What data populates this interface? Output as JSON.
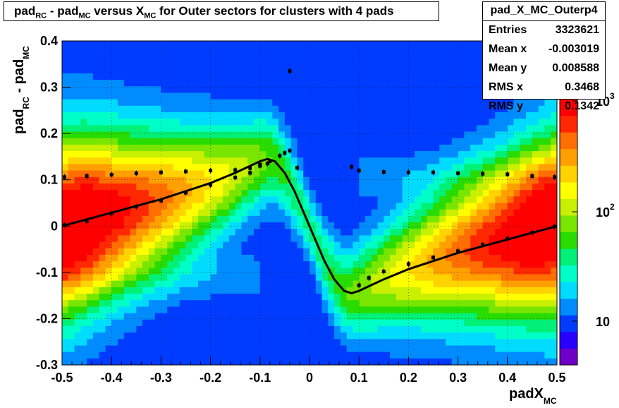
{
  "title": {
    "text_parts": [
      "pad",
      "RC",
      " - pad",
      "MC",
      " versus X",
      "MC",
      " for Outer sectors for clusters with 4 pads"
    ]
  },
  "stats": {
    "name": "pad_X_MC_Outerp4",
    "rows": [
      {
        "label": "Entries",
        "value": "3323621"
      },
      {
        "label": "Mean x",
        "value": "-0.003019"
      },
      {
        "label": "Mean y",
        "value": "0.008588"
      },
      {
        "label": "RMS x",
        "value": "0.3468"
      },
      {
        "label": "RMS y",
        "value": "0.1342"
      }
    ]
  },
  "chart_data": {
    "type": "heatmap",
    "xlabel": "padX",
    "xlabel_sub": "MC",
    "ylabel_parts": [
      "pad",
      "RC",
      " - pad",
      "MC"
    ],
    "xlim": [
      -0.5,
      0.5
    ],
    "ylim": [
      -0.3,
      0.4
    ],
    "x_ticks": [
      "-0.5",
      "-0.4",
      "-0.3",
      "-0.2",
      "-0.1",
      "0",
      "0.1",
      "0.2",
      "0.3",
      "0.4",
      "0.5"
    ],
    "y_ticks": [
      "-0.3",
      "-0.2",
      "-0.1",
      "0",
      "0.1",
      "0.2",
      "0.3",
      "0.4"
    ],
    "z_scale": "log",
    "z_ticks": [
      "10",
      "10^2",
      "10^3"
    ],
    "colors": {
      "max": "#ff1a00",
      "high": "#ff8c00",
      "mid": "#ffff00",
      "lowmid": "#33dd00",
      "low": "#00ffff",
      "min": "#0000ff"
    },
    "profile_upper": [
      [
        -0.495,
        0.106
      ],
      [
        -0.45,
        0.108
      ],
      [
        -0.4,
        0.111
      ],
      [
        -0.35,
        0.114
      ],
      [
        -0.3,
        0.116
      ],
      [
        -0.25,
        0.118
      ],
      [
        -0.2,
        0.12
      ],
      [
        -0.15,
        0.121
      ],
      [
        -0.12,
        0.125
      ],
      [
        -0.1,
        0.133
      ],
      [
        -0.08,
        0.14
      ],
      [
        -0.06,
        0.152
      ],
      [
        -0.05,
        0.158
      ],
      [
        -0.04,
        0.163
      ],
      [
        -0.025,
        0.126
      ],
      [
        -0.04,
        0.335
      ],
      [
        0.085,
        0.128
      ],
      [
        0.1,
        0.12
      ],
      [
        0.15,
        0.117
      ],
      [
        0.2,
        0.116
      ],
      [
        0.25,
        0.116
      ],
      [
        0.3,
        0.114
      ],
      [
        0.35,
        0.113
      ],
      [
        0.4,
        0.112
      ],
      [
        0.45,
        0.108
      ],
      [
        0.495,
        0.106
      ]
    ],
    "profile_lower": [
      [
        -0.495,
        0.002
      ],
      [
        -0.45,
        0.011
      ],
      [
        -0.4,
        0.027
      ],
      [
        -0.35,
        0.042
      ],
      [
        -0.3,
        0.055
      ],
      [
        -0.25,
        0.072
      ],
      [
        -0.2,
        0.089
      ],
      [
        -0.15,
        0.105
      ],
      [
        -0.12,
        0.115
      ],
      [
        -0.1,
        0.13
      ],
      [
        -0.085,
        0.135
      ],
      [
        0.1,
        -0.128
      ],
      [
        0.12,
        -0.112
      ],
      [
        0.15,
        -0.098
      ],
      [
        0.2,
        -0.082
      ],
      [
        0.25,
        -0.068
      ],
      [
        0.3,
        -0.054
      ],
      [
        0.35,
        -0.04
      ],
      [
        0.4,
        -0.027
      ],
      [
        0.45,
        -0.014
      ],
      [
        0.495,
        -0.001
      ]
    ],
    "fit_curve": [
      [
        -0.5,
        0.0
      ],
      [
        -0.4,
        0.029
      ],
      [
        -0.3,
        0.058
      ],
      [
        -0.2,
        0.093
      ],
      [
        -0.15,
        0.115
      ],
      [
        -0.12,
        0.13
      ],
      [
        -0.1,
        0.14
      ],
      [
        -0.085,
        0.145
      ],
      [
        -0.07,
        0.14
      ],
      [
        -0.05,
        0.115
      ],
      [
        -0.03,
        0.075
      ],
      [
        -0.01,
        0.025
      ],
      [
        0.0,
        0.0
      ],
      [
        0.01,
        -0.025
      ],
      [
        0.03,
        -0.075
      ],
      [
        0.05,
        -0.115
      ],
      [
        0.07,
        -0.14
      ],
      [
        0.085,
        -0.145
      ],
      [
        0.1,
        -0.14
      ],
      [
        0.12,
        -0.13
      ],
      [
        0.15,
        -0.115
      ],
      [
        0.2,
        -0.093
      ],
      [
        0.3,
        -0.058
      ],
      [
        0.4,
        -0.029
      ],
      [
        0.5,
        0.0
      ]
    ]
  }
}
